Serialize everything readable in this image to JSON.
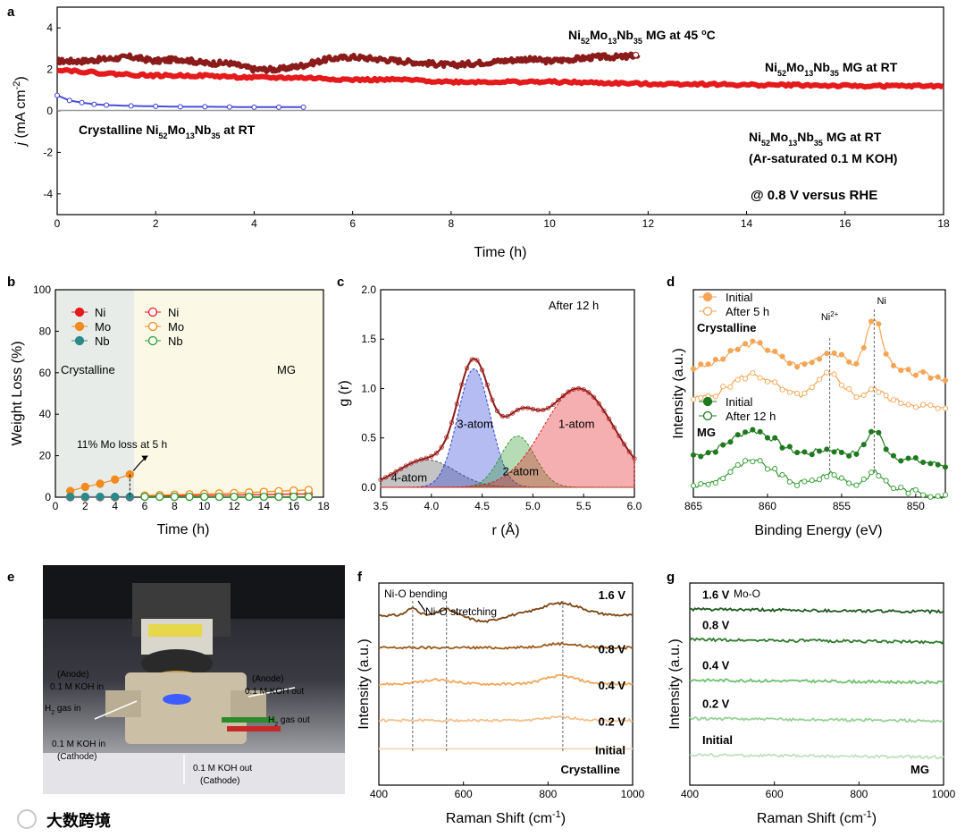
{
  "panels": {
    "a": "a",
    "b": "b",
    "c": "c",
    "d": "d",
    "e": "e",
    "f": "f",
    "g": "g"
  },
  "chart_data": [
    {
      "panel": "a",
      "type": "line",
      "xlabel": "Time (h)",
      "ylabel": "j (mA cm-2)",
      "xlim": [
        0,
        18
      ],
      "ylim": [
        -5,
        5
      ],
      "xticks": [
        0,
        2,
        4,
        6,
        8,
        10,
        12,
        14,
        16,
        18
      ],
      "yticks": [
        4,
        2,
        0,
        -2,
        -4
      ],
      "annotation": "@ 0.8 V versus RHE",
      "series": [
        {
          "name": "Ni52Mo13Nb35 MG at 45 oC",
          "color": "#8b1a1a",
          "x": [
            0,
            0.5,
            1,
            1.5,
            2,
            2.5,
            3,
            3.5,
            4,
            4.5,
            5,
            5.5,
            6,
            6.5,
            7,
            7.5,
            8,
            8.5,
            9,
            9.5,
            10,
            10.5,
            11,
            11.5,
            11.8
          ],
          "y": [
            2.4,
            2.4,
            2.5,
            2.6,
            2.4,
            2.5,
            2.3,
            2.3,
            2.0,
            2.0,
            2.2,
            2.5,
            2.6,
            2.5,
            2.4,
            2.3,
            2.2,
            2.3,
            2.4,
            2.5,
            2.4,
            2.5,
            2.6,
            2.6,
            2.7
          ]
        },
        {
          "name": "Ni52Mo13Nb35 MG at RT",
          "color": "#e41a1c",
          "x": [
            0,
            1,
            2,
            3,
            4,
            5,
            6,
            7,
            8,
            9,
            10,
            11,
            12,
            13,
            14,
            15,
            16,
            17,
            18
          ],
          "y": [
            2.0,
            1.8,
            1.7,
            1.7,
            1.6,
            1.6,
            1.5,
            1.5,
            1.4,
            1.4,
            1.4,
            1.35,
            1.3,
            1.3,
            1.25,
            1.25,
            1.2,
            1.2,
            1.2
          ]
        },
        {
          "name": "Crystalline Ni52Mo13Nb35 at RT",
          "color": "#3a3ad6",
          "x": [
            0,
            0.25,
            0.5,
            0.75,
            1,
            1.5,
            2,
            2.5,
            3,
            3.5,
            4,
            4.5,
            5
          ],
          "y": [
            0.75,
            0.5,
            0.4,
            0.32,
            0.28,
            0.24,
            0.22,
            0.2,
            0.2,
            0.19,
            0.18,
            0.18,
            0.18
          ]
        },
        {
          "name": "Ni52Mo13Nb35 MG at RT (Ar-saturated 0.1 M KOH)",
          "color": "#999999",
          "x": [
            0,
            18
          ],
          "y": [
            0.02,
            0.02
          ]
        }
      ],
      "labels": {
        "mg45_pre": "Ni",
        "mg45_s1": "52",
        "mg45_m": "Mo",
        "mg45_s2": "13",
        "mg45_n": "Nb",
        "mg45_s3": "35",
        "mg45_post": " MG at 45 ",
        "mg45_deg": "o",
        "mg45_c": "C",
        "mgrt_post": " MG at RT",
        "cry_pre": "Crystalline Ni",
        "cry_post": " at RT",
        "ar_line2": "(Ar-saturated 0.1 M KOH)"
      }
    },
    {
      "panel": "b",
      "type": "line",
      "xlabel": "Time (h)",
      "ylabel": "Weight Loss (%)",
      "xlim": [
        0,
        18
      ],
      "ylim": [
        0,
        100
      ],
      "xticks": [
        0,
        2,
        4,
        6,
        8,
        10,
        12,
        14,
        16,
        18
      ],
      "yticks": [
        0,
        20,
        40,
        60,
        80,
        100
      ],
      "regions": [
        "Crystalline",
        "MG"
      ],
      "annotation": "11% Mo loss at 5 h",
      "series": [
        {
          "name": "Ni",
          "group": "Crystalline",
          "color": "#e41a1c",
          "x": [
            1,
            2,
            3,
            4,
            5
          ],
          "y": [
            0,
            0,
            0,
            0,
            0
          ]
        },
        {
          "name": "Mo",
          "group": "Crystalline",
          "color": "#f28a1d",
          "x": [
            1,
            2,
            3,
            4,
            5
          ],
          "y": [
            3,
            5,
            6.5,
            8.5,
            11
          ]
        },
        {
          "name": "Nb",
          "group": "Crystalline",
          "color": "#2a8a8a",
          "x": [
            1,
            2,
            3,
            4,
            5
          ],
          "y": [
            0.2,
            0.2,
            0.2,
            0.2,
            0.2
          ]
        },
        {
          "name": "Ni",
          "group": "MG",
          "color": "#e41a1c",
          "x": [
            6,
            7,
            8,
            9,
            10,
            11,
            12,
            13,
            14,
            15,
            16,
            17
          ],
          "y": [
            0.5,
            0.6,
            0.7,
            0.8,
            0.9,
            1.0,
            1.1,
            1.2,
            1.3,
            1.4,
            1.5,
            1.6
          ]
        },
        {
          "name": "Mo",
          "group": "MG",
          "color": "#f28a1d",
          "x": [
            6,
            7,
            8,
            9,
            10,
            11,
            12,
            13,
            14,
            15,
            16,
            17
          ],
          "y": [
            0.8,
            1.0,
            1.2,
            1.4,
            1.6,
            1.8,
            2.0,
            2.3,
            2.6,
            2.9,
            3.2,
            3.5
          ]
        },
        {
          "name": "Nb",
          "group": "MG",
          "color": "#2e9a2e",
          "x": [
            6,
            7,
            8,
            9,
            10,
            11,
            12,
            13,
            14,
            15,
            16,
            17
          ],
          "y": [
            0.2,
            0.2,
            0.2,
            0.2,
            0.2,
            0.2,
            0.2,
            0.2,
            0.2,
            0.2,
            0.2,
            0.2
          ]
        }
      ]
    },
    {
      "panel": "c",
      "type": "area",
      "xlabel": "r (Å)",
      "ylabel": "g (r)",
      "xlim": [
        3.5,
        6.0
      ],
      "ylim": [
        -0.1,
        2.0
      ],
      "xticks": [
        3.5,
        4.0,
        4.5,
        5.0,
        5.5,
        6.0
      ],
      "yticks": [
        0.0,
        0.5,
        1.0,
        1.5,
        2.0
      ],
      "annotation": "After 12 h",
      "peaks": [
        {
          "name": "4-atom",
          "center": 3.95,
          "height": 0.28,
          "width": 0.28,
          "color": "#555555"
        },
        {
          "name": "3-atom",
          "center": 4.42,
          "height": 1.2,
          "width": 0.16,
          "color": "#2b3fd6"
        },
        {
          "name": "2-atom",
          "center": 4.85,
          "height": 0.52,
          "width": 0.17,
          "color": "#2e9a2e"
        },
        {
          "name": "1-atom",
          "center": 5.45,
          "height": 1.0,
          "width": 0.35,
          "color": "#e41a1c"
        }
      ]
    },
    {
      "panel": "d",
      "type": "line",
      "xlabel": "Binding Energy (eV)",
      "ylabel": "Intensity (a.u.)",
      "xlim": [
        865,
        848
      ],
      "xticks": [
        865,
        860,
        855,
        850
      ],
      "peaks_labels": [
        "Ni2+",
        "Ni"
      ],
      "groups": [
        {
          "name": "Crystalline",
          "color": "#f5a555",
          "series": [
            "Initial",
            "After 5 h"
          ]
        },
        {
          "name": "MG",
          "color": "#1f7a1f",
          "series": [
            "Initial",
            "After 12 h"
          ]
        }
      ]
    },
    {
      "panel": "f",
      "type": "line",
      "xlabel": "Raman Shift (cm-1)",
      "ylabel": "Intensity (a.u.)",
      "xlim": [
        400,
        1000
      ],
      "xticks": [
        400,
        600,
        800,
        1000
      ],
      "sample": "Crystalline",
      "series_names": [
        "1.6 V",
        "0.8 V",
        "0.4 V",
        "0.2 V",
        "Initial"
      ],
      "peak_labels": [
        "Ni-O bending",
        "Ni-O stretching",
        "Mo-O"
      ]
    },
    {
      "panel": "g",
      "type": "line",
      "xlabel": "Raman Shift (cm-1)",
      "ylabel": "Intensity (a.u.)",
      "xlim": [
        400,
        1000
      ],
      "xticks": [
        400,
        600,
        800,
        1000
      ],
      "sample": "MG",
      "series_names": [
        "1.6 V",
        "0.8 V",
        "0.4 V",
        "0.2 V",
        "Initial"
      ]
    }
  ],
  "photo_e": {
    "labels": [
      "(Anode)",
      "0.1 M KOH in",
      "H2 gas in",
      "(Anode)",
      "0.1 M KOH out",
      "H2 gas out",
      "0.1 M KOH in",
      "(Cathode)",
      "0.1 M KOH out",
      "(Cathode)"
    ]
  },
  "watermark": "大数跨境"
}
